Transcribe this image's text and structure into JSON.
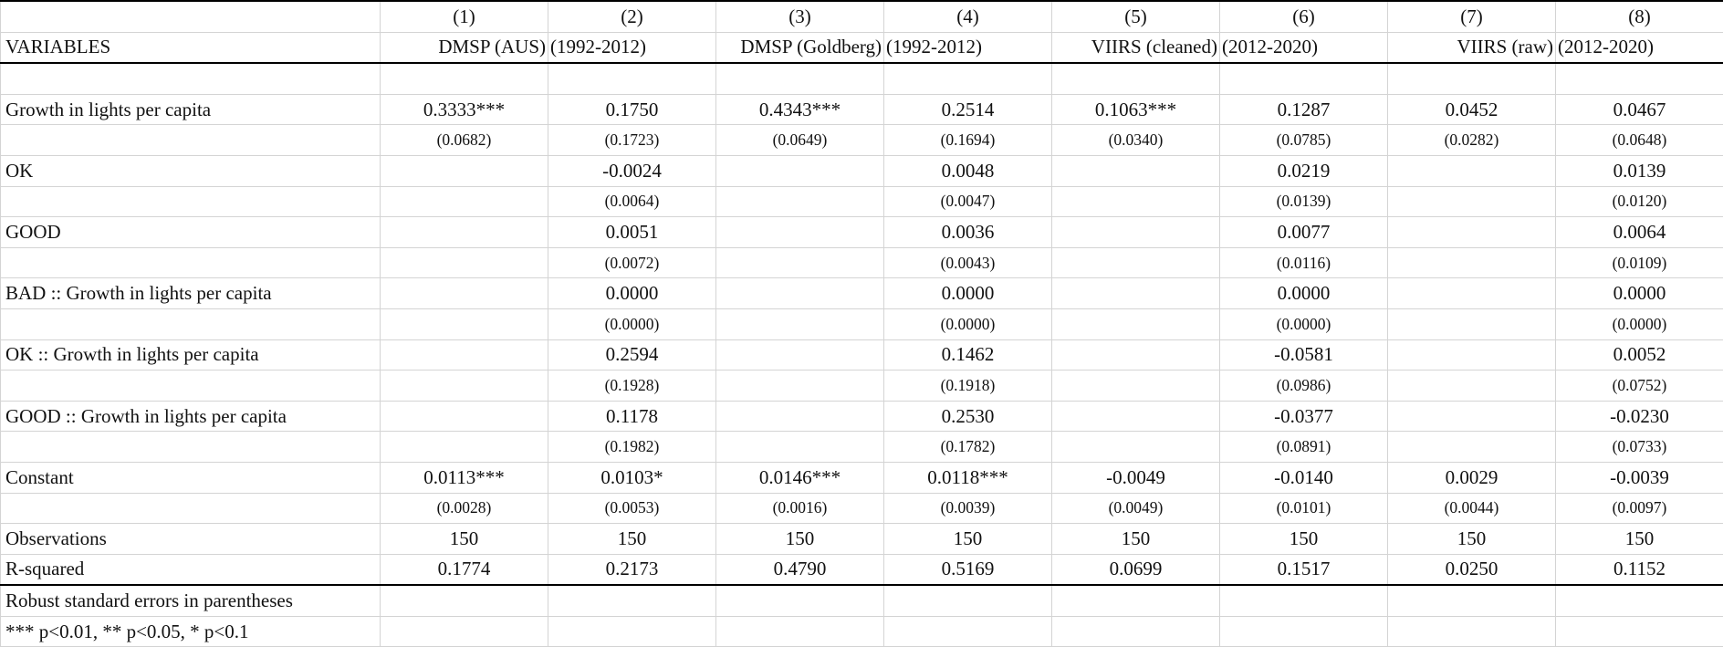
{
  "columns": {
    "numbers": [
      "(1)",
      "(2)",
      "(3)",
      "(4)",
      "(5)",
      "(6)",
      "(7)",
      "(8)"
    ],
    "variables_label": "VARIABLES",
    "groups": [
      {
        "left": "DMSP (AUS)",
        "right": "(1992-2012)"
      },
      {
        "left": "DMSP (Goldberg)",
        "right": " (1992-2012)"
      },
      {
        "left": "VIIRS (cleaned)",
        "right": "(2012-2020)"
      },
      {
        "left": "VIIRS (raw)",
        "right": "(2012-2020)"
      }
    ]
  },
  "rows": [
    {
      "label": "Growth in lights per capita",
      "coef": [
        "0.3333***",
        "0.1750",
        "0.4343***",
        "0.2514",
        "0.1063***",
        "0.1287",
        "0.0452",
        "0.0467"
      ],
      "se": [
        "(0.0682)",
        "(0.1723)",
        "(0.0649)",
        "(0.1694)",
        "(0.0340)",
        "(0.0785)",
        "(0.0282)",
        "(0.0648)"
      ]
    },
    {
      "label": "OK",
      "coef": [
        "",
        "-0.0024",
        "",
        "0.0048",
        "",
        "0.0219",
        "",
        "0.0139"
      ],
      "se": [
        "",
        "(0.0064)",
        "",
        "(0.0047)",
        "",
        "(0.0139)",
        "",
        "(0.0120)"
      ]
    },
    {
      "label": "GOOD",
      "coef": [
        "",
        "0.0051",
        "",
        "0.0036",
        "",
        "0.0077",
        "",
        "0.0064"
      ],
      "se": [
        "",
        "(0.0072)",
        "",
        "(0.0043)",
        "",
        "(0.0116)",
        "",
        "(0.0109)"
      ]
    },
    {
      "label": "BAD :: Growth in lights per capita",
      "coef": [
        "",
        "0.0000",
        "",
        "0.0000",
        "",
        "0.0000",
        "",
        "0.0000"
      ],
      "se": [
        "",
        "(0.0000)",
        "",
        "(0.0000)",
        "",
        "(0.0000)",
        "",
        "(0.0000)"
      ]
    },
    {
      "label": "OK :: Growth in lights per capita",
      "coef": [
        "",
        "0.2594",
        "",
        "0.1462",
        "",
        "-0.0581",
        "",
        "0.0052"
      ],
      "se": [
        "",
        "(0.1928)",
        "",
        "(0.1918)",
        "",
        "(0.0986)",
        "",
        "(0.0752)"
      ]
    },
    {
      "label": "GOOD :: Growth in lights per capita",
      "coef": [
        "",
        "0.1178",
        "",
        "0.2530",
        "",
        "-0.0377",
        "",
        "-0.0230"
      ],
      "se": [
        "",
        "(0.1982)",
        "",
        "(0.1782)",
        "",
        "(0.0891)",
        "",
        "(0.0733)"
      ]
    },
    {
      "label": "Constant",
      "coef": [
        "0.0113***",
        "0.0103*",
        "0.0146***",
        "0.0118***",
        "-0.0049",
        "-0.0140",
        "0.0029",
        "-0.0039"
      ],
      "se": [
        "(0.0028)",
        "(0.0053)",
        "(0.0016)",
        "(0.0039)",
        "(0.0049)",
        "(0.0101)",
        "(0.0044)",
        "(0.0097)"
      ]
    }
  ],
  "stats": [
    {
      "label": "Observations",
      "values": [
        "150",
        "150",
        "150",
        "150",
        "150",
        "150",
        "150",
        "150"
      ]
    },
    {
      "label": "R-squared",
      "values": [
        "0.1774",
        "0.2173",
        "0.4790",
        "0.5169",
        "0.0699",
        "0.1517",
        "0.0250",
        "0.1152"
      ]
    }
  ],
  "notes": [
    "Robust standard errors in parentheses",
    "*** p<0.01, ** p<0.05, * p<0.1"
  ]
}
